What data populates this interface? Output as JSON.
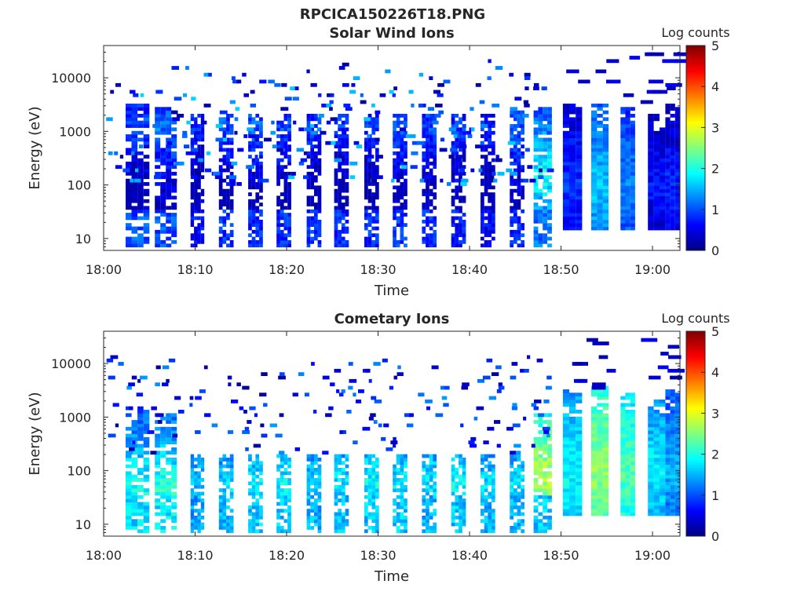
{
  "figure": {
    "title": "RPCICA150226T18.PNG"
  },
  "chart_data": [
    {
      "type": "heatmap",
      "title": "Solar Wind Ions",
      "xlabel": "Time",
      "ylabel": "Energy (eV)",
      "x_ticks": [
        "18:00",
        "18:10",
        "18:20",
        "18:30",
        "18:40",
        "18:50",
        "19:00"
      ],
      "x_range": [
        "18:00",
        "19:03"
      ],
      "y_scale": "log",
      "y_ticks": [
        "10",
        "100",
        "1000",
        "10000"
      ],
      "y_range": [
        6,
        40000
      ],
      "colorbar": {
        "label": "Log counts",
        "ticks": [
          "0",
          "1",
          "2",
          "3",
          "4",
          "5"
        ],
        "range": [
          0,
          5
        ],
        "colormap": "jet"
      },
      "sweeps": [
        {
          "start": "18:02.4",
          "end": "18:05.0",
          "hi_ev": 3500,
          "peak_ev": 1400,
          "level": 1.0,
          "low_level": 1.0
        },
        {
          "start": "18:05.6",
          "end": "18:08.0",
          "hi_ev": 3000,
          "peak_ev": 1200,
          "level": 1.2,
          "low_level": 1.0
        },
        {
          "start": "18:09.5",
          "end": "18:11.0",
          "hi_ev": 2000,
          "peak_ev": 1400,
          "level": 0.8,
          "low_level": 0.6
        },
        {
          "start": "18:12.6",
          "end": "18:14.2",
          "hi_ev": 2000,
          "peak_ev": 1300,
          "level": 1.0,
          "low_level": 0.8
        },
        {
          "start": "18:15.8",
          "end": "18:17.4",
          "hi_ev": 2000,
          "peak_ev": 1300,
          "level": 1.1,
          "low_level": 0.8
        },
        {
          "start": "18:18.9",
          "end": "18:20.5",
          "hi_ev": 2000,
          "peak_ev": 1200,
          "level": 1.0,
          "low_level": 0.8
        },
        {
          "start": "18:22.2",
          "end": "18:23.8",
          "hi_ev": 2000,
          "peak_ev": 1300,
          "level": 0.9,
          "low_level": 0.8
        },
        {
          "start": "18:25.2",
          "end": "18:26.8",
          "hi_ev": 2000,
          "peak_ev": 1300,
          "level": 0.9,
          "low_level": 0.8
        },
        {
          "start": "18:28.5",
          "end": "18:30.1",
          "hi_ev": 2000,
          "peak_ev": 1300,
          "level": 0.9,
          "low_level": 0.8
        },
        {
          "start": "18:31.6",
          "end": "18:33.2",
          "hi_ev": 2000,
          "peak_ev": 1300,
          "level": 1.1,
          "low_level": 0.9
        },
        {
          "start": "18:34.8",
          "end": "18:36.4",
          "hi_ev": 2000,
          "peak_ev": 1300,
          "level": 1.0,
          "low_level": 0.8
        },
        {
          "start": "18:38.0",
          "end": "18:39.6",
          "hi_ev": 2000,
          "peak_ev": 1300,
          "level": 0.9,
          "low_level": 0.7
        },
        {
          "start": "18:41.2",
          "end": "18:42.8",
          "hi_ev": 2000,
          "peak_ev": 1300,
          "level": 0.8,
          "low_level": 0.6
        },
        {
          "start": "18:44.4",
          "end": "18:46.0",
          "hi_ev": 2500,
          "peak_ev": 1300,
          "level": 1.2,
          "low_level": 0.8
        },
        {
          "start": "18:47.0",
          "end": "18:49.0",
          "hi_ev": 3000,
          "peak_ev": 150,
          "level": 1.9,
          "low_level": 1.2
        }
      ],
      "blocks": [
        {
          "start": "18:50.2",
          "end": "18:52.3",
          "lo_ev": 15,
          "hi_ev": 3500,
          "level": 0.9
        },
        {
          "start": "18:53.3",
          "end": "18:55.2",
          "lo_ev": 15,
          "hi_ev": 3500,
          "level": 1.6
        },
        {
          "start": "18:56.5",
          "end": "18:58.1",
          "lo_ev": 15,
          "hi_ev": 3000,
          "level": 1.3
        },
        {
          "start": "18:59.5",
          "end": "19:01.4",
          "lo_ev": 15,
          "hi_ev": 2000,
          "level": 0.7
        },
        {
          "start": "19:01.4",
          "end": "19:03.0",
          "lo_ev": 15,
          "hi_ev": 3500,
          "level": 0.8
        }
      ]
    },
    {
      "type": "heatmap",
      "title": "Cometary Ions",
      "xlabel": "Time",
      "ylabel": "Energy (eV)",
      "x_ticks": [
        "18:00",
        "18:10",
        "18:20",
        "18:30",
        "18:40",
        "18:50",
        "19:00"
      ],
      "x_range": [
        "18:00",
        "19:03"
      ],
      "y_scale": "log",
      "y_ticks": [
        "10",
        "100",
        "1000",
        "10000"
      ],
      "y_range": [
        6,
        40000
      ],
      "colorbar": {
        "label": "Log counts",
        "ticks": [
          "0",
          "1",
          "2",
          "3",
          "4",
          "5"
        ],
        "range": [
          0,
          5
        ],
        "colormap": "jet"
      },
      "sweeps": [
        {
          "start": "18:02.4",
          "end": "18:05.0",
          "hi_ev": 1500,
          "peak_ev": 50,
          "level": 2.0,
          "low_level": 1.7
        },
        {
          "start": "18:05.6",
          "end": "18:08.0",
          "hi_ev": 1200,
          "peak_ev": 45,
          "level": 2.1,
          "low_level": 1.8
        },
        {
          "start": "18:09.5",
          "end": "18:11.0",
          "hi_ev": 200,
          "peak_ev": 60,
          "level": 1.6,
          "low_level": 1.4
        },
        {
          "start": "18:12.6",
          "end": "18:14.2",
          "hi_ev": 200,
          "peak_ev": 55,
          "level": 1.7,
          "low_level": 1.5
        },
        {
          "start": "18:15.8",
          "end": "18:17.4",
          "hi_ev": 200,
          "peak_ev": 60,
          "level": 1.8,
          "low_level": 1.6
        },
        {
          "start": "18:18.9",
          "end": "18:20.5",
          "hi_ev": 200,
          "peak_ev": 55,
          "level": 1.9,
          "low_level": 1.6
        },
        {
          "start": "18:22.2",
          "end": "18:23.8",
          "hi_ev": 200,
          "peak_ev": 60,
          "level": 1.7,
          "low_level": 1.5
        },
        {
          "start": "18:25.2",
          "end": "18:26.8",
          "hi_ev": 200,
          "peak_ev": 60,
          "level": 1.8,
          "low_level": 1.6
        },
        {
          "start": "18:28.5",
          "end": "18:30.1",
          "hi_ev": 200,
          "peak_ev": 60,
          "level": 1.9,
          "low_level": 1.6
        },
        {
          "start": "18:31.6",
          "end": "18:33.2",
          "hi_ev": 200,
          "peak_ev": 60,
          "level": 1.8,
          "low_level": 1.6
        },
        {
          "start": "18:34.8",
          "end": "18:36.4",
          "hi_ev": 200,
          "peak_ev": 60,
          "level": 1.8,
          "low_level": 1.5
        },
        {
          "start": "18:38.0",
          "end": "18:39.6",
          "hi_ev": 200,
          "peak_ev": 55,
          "level": 1.9,
          "low_level": 1.6
        },
        {
          "start": "18:41.2",
          "end": "18:42.8",
          "hi_ev": 200,
          "peak_ev": 60,
          "level": 1.7,
          "low_level": 1.5
        },
        {
          "start": "18:44.4",
          "end": "18:46.0",
          "hi_ev": 250,
          "peak_ev": 60,
          "level": 1.8,
          "low_level": 1.5
        },
        {
          "start": "18:47.0",
          "end": "18:49.0",
          "hi_ev": 1200,
          "peak_ev": 80,
          "level": 2.8,
          "low_level": 1.6
        }
      ],
      "blocks": [
        {
          "start": "18:50.2",
          "end": "18:52.3",
          "lo_ev": 15,
          "hi_ev": 3500,
          "level": 1.9
        },
        {
          "start": "18:53.3",
          "end": "18:55.2",
          "lo_ev": 15,
          "hi_ev": 4000,
          "level": 2.6
        },
        {
          "start": "18:56.5",
          "end": "18:58.1",
          "lo_ev": 15,
          "hi_ev": 3000,
          "level": 2.3
        },
        {
          "start": "18:59.5",
          "end": "19:01.4",
          "lo_ev": 15,
          "hi_ev": 2000,
          "level": 1.8
        },
        {
          "start": "19:01.4",
          "end": "19:03.0",
          "lo_ev": 15,
          "hi_ev": 3500,
          "level": 1.5
        }
      ]
    }
  ]
}
